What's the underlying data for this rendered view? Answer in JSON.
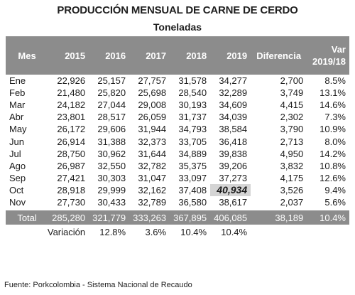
{
  "title": "PRODUCCIÓN MENSUAL DE CARNE DE CERDO",
  "subtitle": "Toneladas",
  "headers": [
    "Mes",
    "2015",
    "2016",
    "2017",
    "2018",
    "2019",
    "Diferencia",
    "Var 2019/18"
  ],
  "rows": [
    {
      "mes": "Ene",
      "y2015": "22,926",
      "y2016": "25,157",
      "y2017": "27,757",
      "y2018": "31,578",
      "y2019": "34,277",
      "diferencia": "2,700",
      "var": "8.5%"
    },
    {
      "mes": "Feb",
      "y2015": "21,480",
      "y2016": "25,820",
      "y2017": "25,698",
      "y2018": "28,540",
      "y2019": "32,289",
      "diferencia": "3,749",
      "var": "13.1%"
    },
    {
      "mes": "Mar",
      "y2015": "24,182",
      "y2016": "27,044",
      "y2017": "29,008",
      "y2018": "30,193",
      "y2019": "34,609",
      "diferencia": "4,415",
      "var": "14.6%"
    },
    {
      "mes": "Abr",
      "y2015": "23,801",
      "y2016": "28,517",
      "y2017": "26,059",
      "y2018": "31,737",
      "y2019": "34,039",
      "diferencia": "2,302",
      "var": "7.3%"
    },
    {
      "mes": "May",
      "y2015": "26,172",
      "y2016": "29,606",
      "y2017": "31,944",
      "y2018": "34,793",
      "y2019": "38,584",
      "diferencia": "3,790",
      "var": "10.9%"
    },
    {
      "mes": "Jun",
      "y2015": "26,914",
      "y2016": "31,388",
      "y2017": "32,373",
      "y2018": "33,705",
      "y2019": "36,418",
      "diferencia": "2,713",
      "var": "8.0%"
    },
    {
      "mes": "Jul",
      "y2015": "28,750",
      "y2016": "30,962",
      "y2017": "31,644",
      "y2018": "34,889",
      "y2019": "39,838",
      "diferencia": "4,950",
      "var": "14.2%"
    },
    {
      "mes": "Ago",
      "y2015": "26,987",
      "y2016": "32,550",
      "y2017": "32,782",
      "y2018": "35,375",
      "y2019": "39,206",
      "diferencia": "3,832",
      "var": "10.8%"
    },
    {
      "mes": "Sep",
      "y2015": "27,421",
      "y2016": "30,303",
      "y2017": "31,047",
      "y2018": "33,097",
      "y2019": "37,273",
      "diferencia": "4,175",
      "var": "12.6%"
    },
    {
      "mes": "Oct",
      "y2015": "28,918",
      "y2016": "29,999",
      "y2017": "32,162",
      "y2018": "37,408",
      "y2019": "40,934",
      "diferencia": "3,526",
      "var": "9.4%"
    },
    {
      "mes": "Nov",
      "y2015": "27,730",
      "y2016": "30,433",
      "y2017": "32,789",
      "y2018": "36,580",
      "y2019": "38,617",
      "diferencia": "2,037",
      "var": "5.6%"
    }
  ],
  "total": {
    "label": "Total",
    "y2015": "285,280",
    "y2016": "321,779",
    "y2017": "333,263",
    "y2018": "367,895",
    "y2019": "406,085",
    "diferencia": "38,189",
    "var": "10.4%"
  },
  "variation": {
    "label": "Variación",
    "y2016": "12.8%",
    "y2017": "3.6%",
    "y2018": "10.4%",
    "y2019": "10.4%"
  },
  "footer": "Fuente: Porkcolombia - Sistema Nacional de Recaudo",
  "colors": {
    "header_bg": "#8c8c8c",
    "highlight_bg": "#d4d4d4"
  }
}
